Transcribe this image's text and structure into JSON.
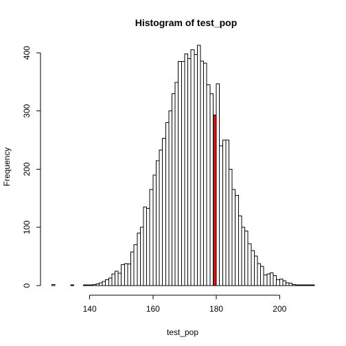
{
  "chart_data": {
    "type": "bar",
    "title": "Histogram of test_pop",
    "xlabel": "test_pop",
    "ylabel": "Frequency",
    "xlim": [
      127.5,
      211
    ],
    "ylim": [
      0,
      420
    ],
    "x_ticks": [
      140,
      160,
      180,
      200
    ],
    "y_ticks": [
      0,
      100,
      200,
      300,
      400
    ],
    "bin_width": 1,
    "bin_starts": [
      128,
      129,
      130,
      131,
      132,
      133,
      134,
      135,
      136,
      137,
      138,
      139,
      140,
      141,
      142,
      143,
      144,
      145,
      146,
      147,
      148,
      149,
      150,
      151,
      152,
      153,
      154,
      155,
      156,
      157,
      158,
      159,
      160,
      161,
      162,
      163,
      164,
      165,
      166,
      167,
      168,
      169,
      170,
      171,
      172,
      173,
      174,
      175,
      176,
      177,
      178,
      179,
      180,
      181,
      182,
      183,
      184,
      185,
      186,
      187,
      188,
      189,
      190,
      191,
      192,
      193,
      194,
      195,
      196,
      197,
      198,
      199,
      200,
      201,
      202,
      203,
      204,
      205,
      206,
      207,
      208,
      209,
      210
    ],
    "values": [
      2,
      0,
      0,
      0,
      0,
      0,
      1,
      0,
      0,
      0,
      1,
      1,
      1,
      2,
      3,
      5,
      7,
      10,
      13,
      20,
      25,
      21,
      36,
      38,
      37,
      58,
      70,
      90,
      100,
      135,
      133,
      165,
      190,
      215,
      233,
      253,
      280,
      300,
      330,
      349,
      385,
      385,
      398,
      390,
      405,
      397,
      413,
      386,
      382,
      345,
      330,
      293,
      347,
      240,
      250,
      250,
      200,
      165,
      155,
      120,
      100,
      94,
      72,
      60,
      51,
      38,
      33,
      18,
      20,
      22,
      17,
      10,
      11,
      8,
      5,
      4,
      2,
      1,
      1,
      1,
      1,
      1,
      1
    ],
    "highlight_bin_start": 179,
    "highlight_color": "#ff0000",
    "bar_fill": "#ffffff",
    "bar_stroke": "#000000"
  }
}
